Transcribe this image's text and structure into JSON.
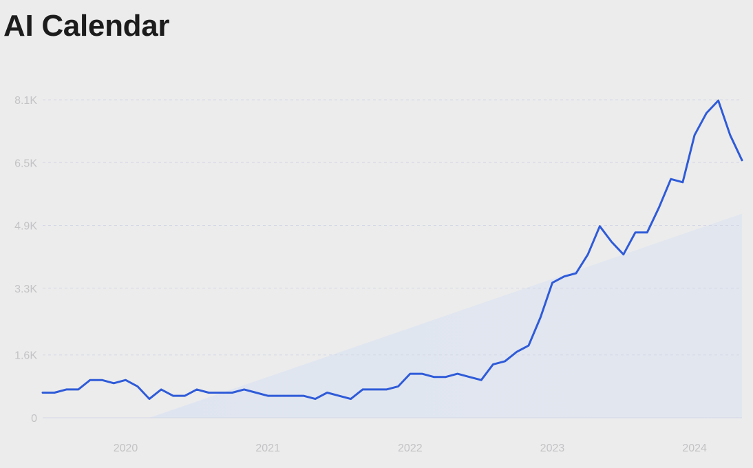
{
  "title": "AI Calendar",
  "colors": {
    "background": "#ececec",
    "line": "#2f5bd8",
    "grid": "#d3d6e6",
    "trend_fill": "#dfe5f0",
    "tick_text": "#c3c3c6",
    "title_text": "#1c1c1c"
  },
  "chart_data": {
    "type": "line",
    "title": "AI Calendar",
    "xlabel": "",
    "ylabel": "",
    "xlim": [
      "2019-06",
      "2024-05"
    ],
    "ylim": [
      0,
      8100
    ],
    "grid": true,
    "grid_style": "dashed horizontal",
    "legend": "none",
    "y_ticks": [
      {
        "value": 0,
        "label": "0"
      },
      {
        "value": 1600,
        "label": "1.6K"
      },
      {
        "value": 3300,
        "label": "3.3K"
      },
      {
        "value": 4900,
        "label": "4.9K"
      },
      {
        "value": 6500,
        "label": "6.5K"
      },
      {
        "value": 8100,
        "label": "8.1K"
      }
    ],
    "x_ticks": [
      {
        "value": "2020-01",
        "label": "2020"
      },
      {
        "value": "2021-01",
        "label": "2021"
      },
      {
        "value": "2022-01",
        "label": "2022"
      },
      {
        "value": "2023-01",
        "label": "2023"
      },
      {
        "value": "2024-01",
        "label": "2024"
      }
    ],
    "trend": {
      "start": {
        "x": "2020-03",
        "y": 0
      },
      "end": {
        "x": "2024-05",
        "y": 5200
      }
    },
    "series": [
      {
        "x": [
          "2019-06",
          "2019-07",
          "2019-08",
          "2019-09",
          "2019-10",
          "2019-11",
          "2019-12",
          "2020-01",
          "2020-02",
          "2020-03",
          "2020-04",
          "2020-05",
          "2020-06",
          "2020-07",
          "2020-08",
          "2020-09",
          "2020-10",
          "2020-11",
          "2020-12",
          "2021-01",
          "2021-02",
          "2021-03",
          "2021-04",
          "2021-05",
          "2021-06",
          "2021-07",
          "2021-08",
          "2021-09",
          "2021-10",
          "2021-11",
          "2021-12",
          "2022-01",
          "2022-02",
          "2022-03",
          "2022-04",
          "2022-05",
          "2022-06",
          "2022-07",
          "2022-08",
          "2022-09",
          "2022-10",
          "2022-11",
          "2022-12",
          "2023-01",
          "2023-02",
          "2023-03",
          "2023-04",
          "2023-05",
          "2023-06",
          "2023-07",
          "2023-08",
          "2023-09",
          "2023-10",
          "2023-11",
          "2023-12",
          "2024-01",
          "2024-02",
          "2024-03",
          "2024-04",
          "2024-05"
        ],
        "values": [
          640,
          640,
          720,
          720,
          960,
          960,
          880,
          960,
          800,
          480,
          720,
          560,
          560,
          720,
          640,
          640,
          640,
          720,
          640,
          560,
          560,
          560,
          560,
          480,
          640,
          560,
          480,
          720,
          720,
          720,
          800,
          1120,
          1120,
          1040,
          1040,
          1120,
          1040,
          960,
          1360,
          1440,
          1680,
          1840,
          2560,
          3440,
          3600,
          3680,
          4160,
          4880,
          4480,
          4160,
          4720,
          4720,
          5360,
          6080,
          6000,
          7200,
          7760,
          8080,
          7200,
          6560
        ]
      }
    ]
  }
}
